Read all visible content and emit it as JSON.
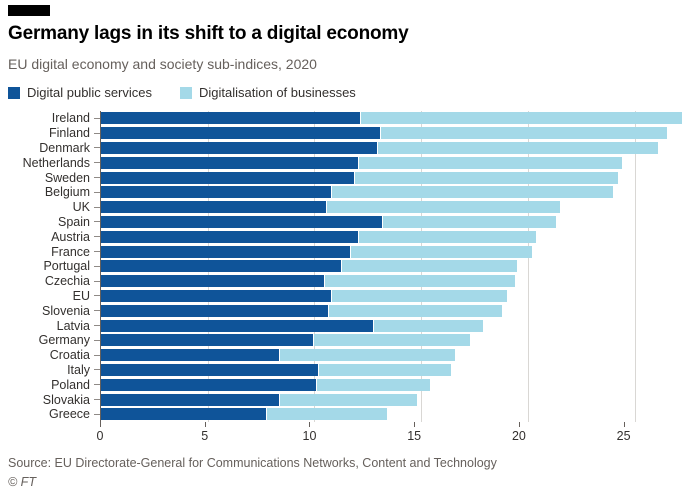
{
  "header": {
    "title": "Germany lags in its shift to a digital economy",
    "subtitle": "EU digital economy and society sub-indices, 2020"
  },
  "legend": [
    {
      "label": "Digital public services",
      "color": "#0f5499"
    },
    {
      "label": "Digitalisation of businesses",
      "color": "#a4d9e8"
    }
  ],
  "chart_data": {
    "type": "bar",
    "orientation": "horizontal",
    "stacked": true,
    "title": "Germany lags in its shift to a digital economy",
    "subtitle": "EU digital economy and society sub-indices, 2020",
    "categories": [
      "Ireland",
      "Finland",
      "Denmark",
      "Netherlands",
      "Sweden",
      "Belgium",
      "UK",
      "Spain",
      "Austria",
      "France",
      "Portugal",
      "Czechia",
      "EU",
      "Slovenia",
      "Latvia",
      "Germany",
      "Croatia",
      "Italy",
      "Poland",
      "Slovakia",
      "Greece"
    ],
    "series": [
      {
        "name": "Digital public services",
        "color": "#0f5499",
        "values": [
          12.2,
          13.1,
          13.0,
          12.1,
          11.9,
          10.8,
          10.6,
          13.2,
          12.1,
          11.7,
          11.3,
          10.5,
          10.8,
          10.7,
          12.8,
          10.0,
          8.4,
          10.2,
          10.1,
          8.4,
          7.8
        ]
      },
      {
        "name": "Digitalisation of businesses",
        "color": "#a4d9e8",
        "values": [
          15.0,
          13.4,
          13.1,
          12.3,
          12.3,
          13.2,
          10.9,
          8.1,
          8.3,
          8.5,
          8.2,
          8.9,
          8.2,
          8.1,
          5.1,
          7.3,
          8.2,
          6.2,
          5.3,
          6.4,
          5.6
        ]
      }
    ],
    "totals": [
      27.2,
      26.5,
      26.1,
      24.4,
      24.2,
      24.0,
      21.5,
      21.3,
      20.4,
      20.2,
      19.5,
      19.4,
      19.0,
      18.8,
      17.9,
      17.3,
      16.6,
      16.4,
      15.4,
      14.8,
      13.4
    ],
    "xlim": [
      0,
      27.5
    ],
    "xticks": [
      0,
      5,
      10,
      15,
      20,
      25
    ],
    "grid": "vertical"
  },
  "footer": {
    "source": "Source: EU Directorate-General for Communications Networks, Content and Technology",
    "credit": "© FT"
  }
}
